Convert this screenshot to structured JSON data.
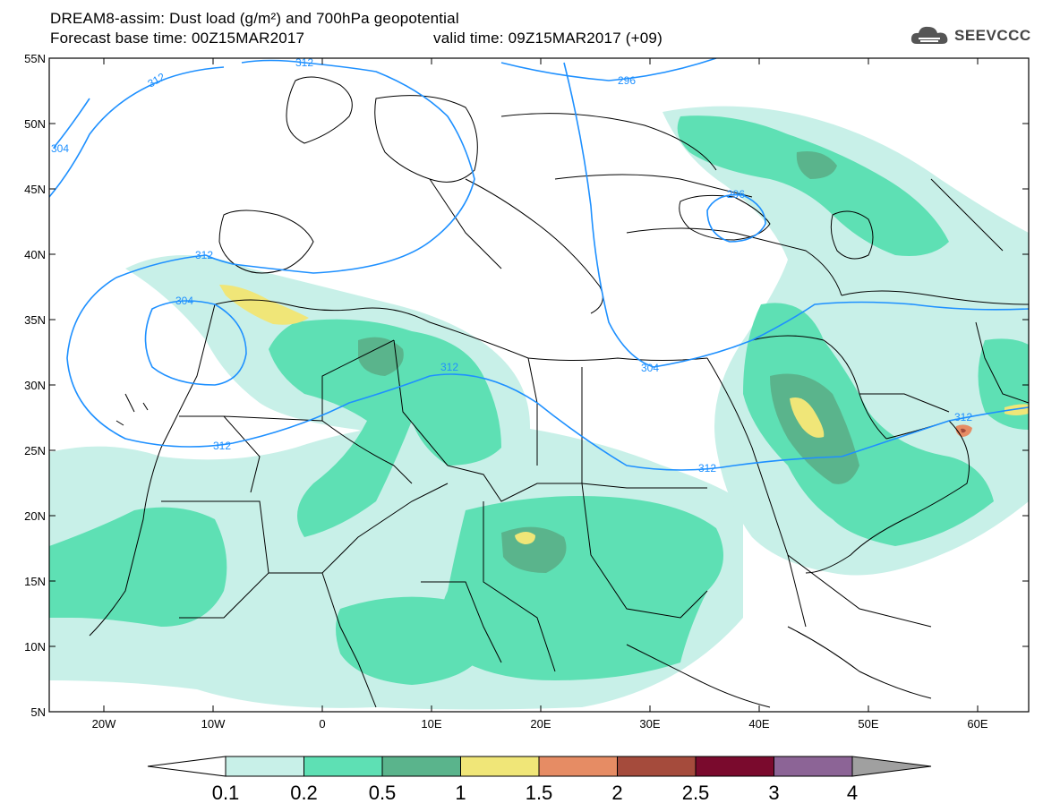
{
  "title": {
    "line1": "DREAM8-assim: Dust load (g/m²) and 700hPa geopotential",
    "line2_left": "Forecast base time: 00Z15MAR2017",
    "line2_right": "valid time: 09Z15MAR2017 (+09)"
  },
  "logo": {
    "text": "SEEVCCC",
    "icon": "cloud-logo-icon"
  },
  "map": {
    "lat_labels": [
      "55N",
      "50N",
      "45N",
      "40N",
      "35N",
      "30N",
      "25N",
      "20N",
      "15N",
      "10N",
      "5N"
    ],
    "lon_labels": [
      "20W",
      "10W",
      "0",
      "10E",
      "20E",
      "30E",
      "40E",
      "50E",
      "60E"
    ],
    "contour_labels": [
      "312",
      "312",
      "296",
      "304",
      "296",
      "312",
      "304",
      "312",
      "312",
      "304",
      "312",
      "312"
    ],
    "colors": {
      "border": "#000000",
      "contour": "#1e90ff"
    }
  },
  "colorbar": {
    "labels": [
      "0.1",
      "0.2",
      "0.5",
      "1",
      "1.5",
      "2",
      "2.5",
      "3",
      "4"
    ],
    "colors": [
      "#ffffff",
      "#c8f0e8",
      "#5ee0b4",
      "#5ab48c",
      "#f0e678",
      "#e68c64",
      "#a54b3c",
      "#7a0a2d",
      "#8c6496",
      "#a0a0a0"
    ]
  }
}
